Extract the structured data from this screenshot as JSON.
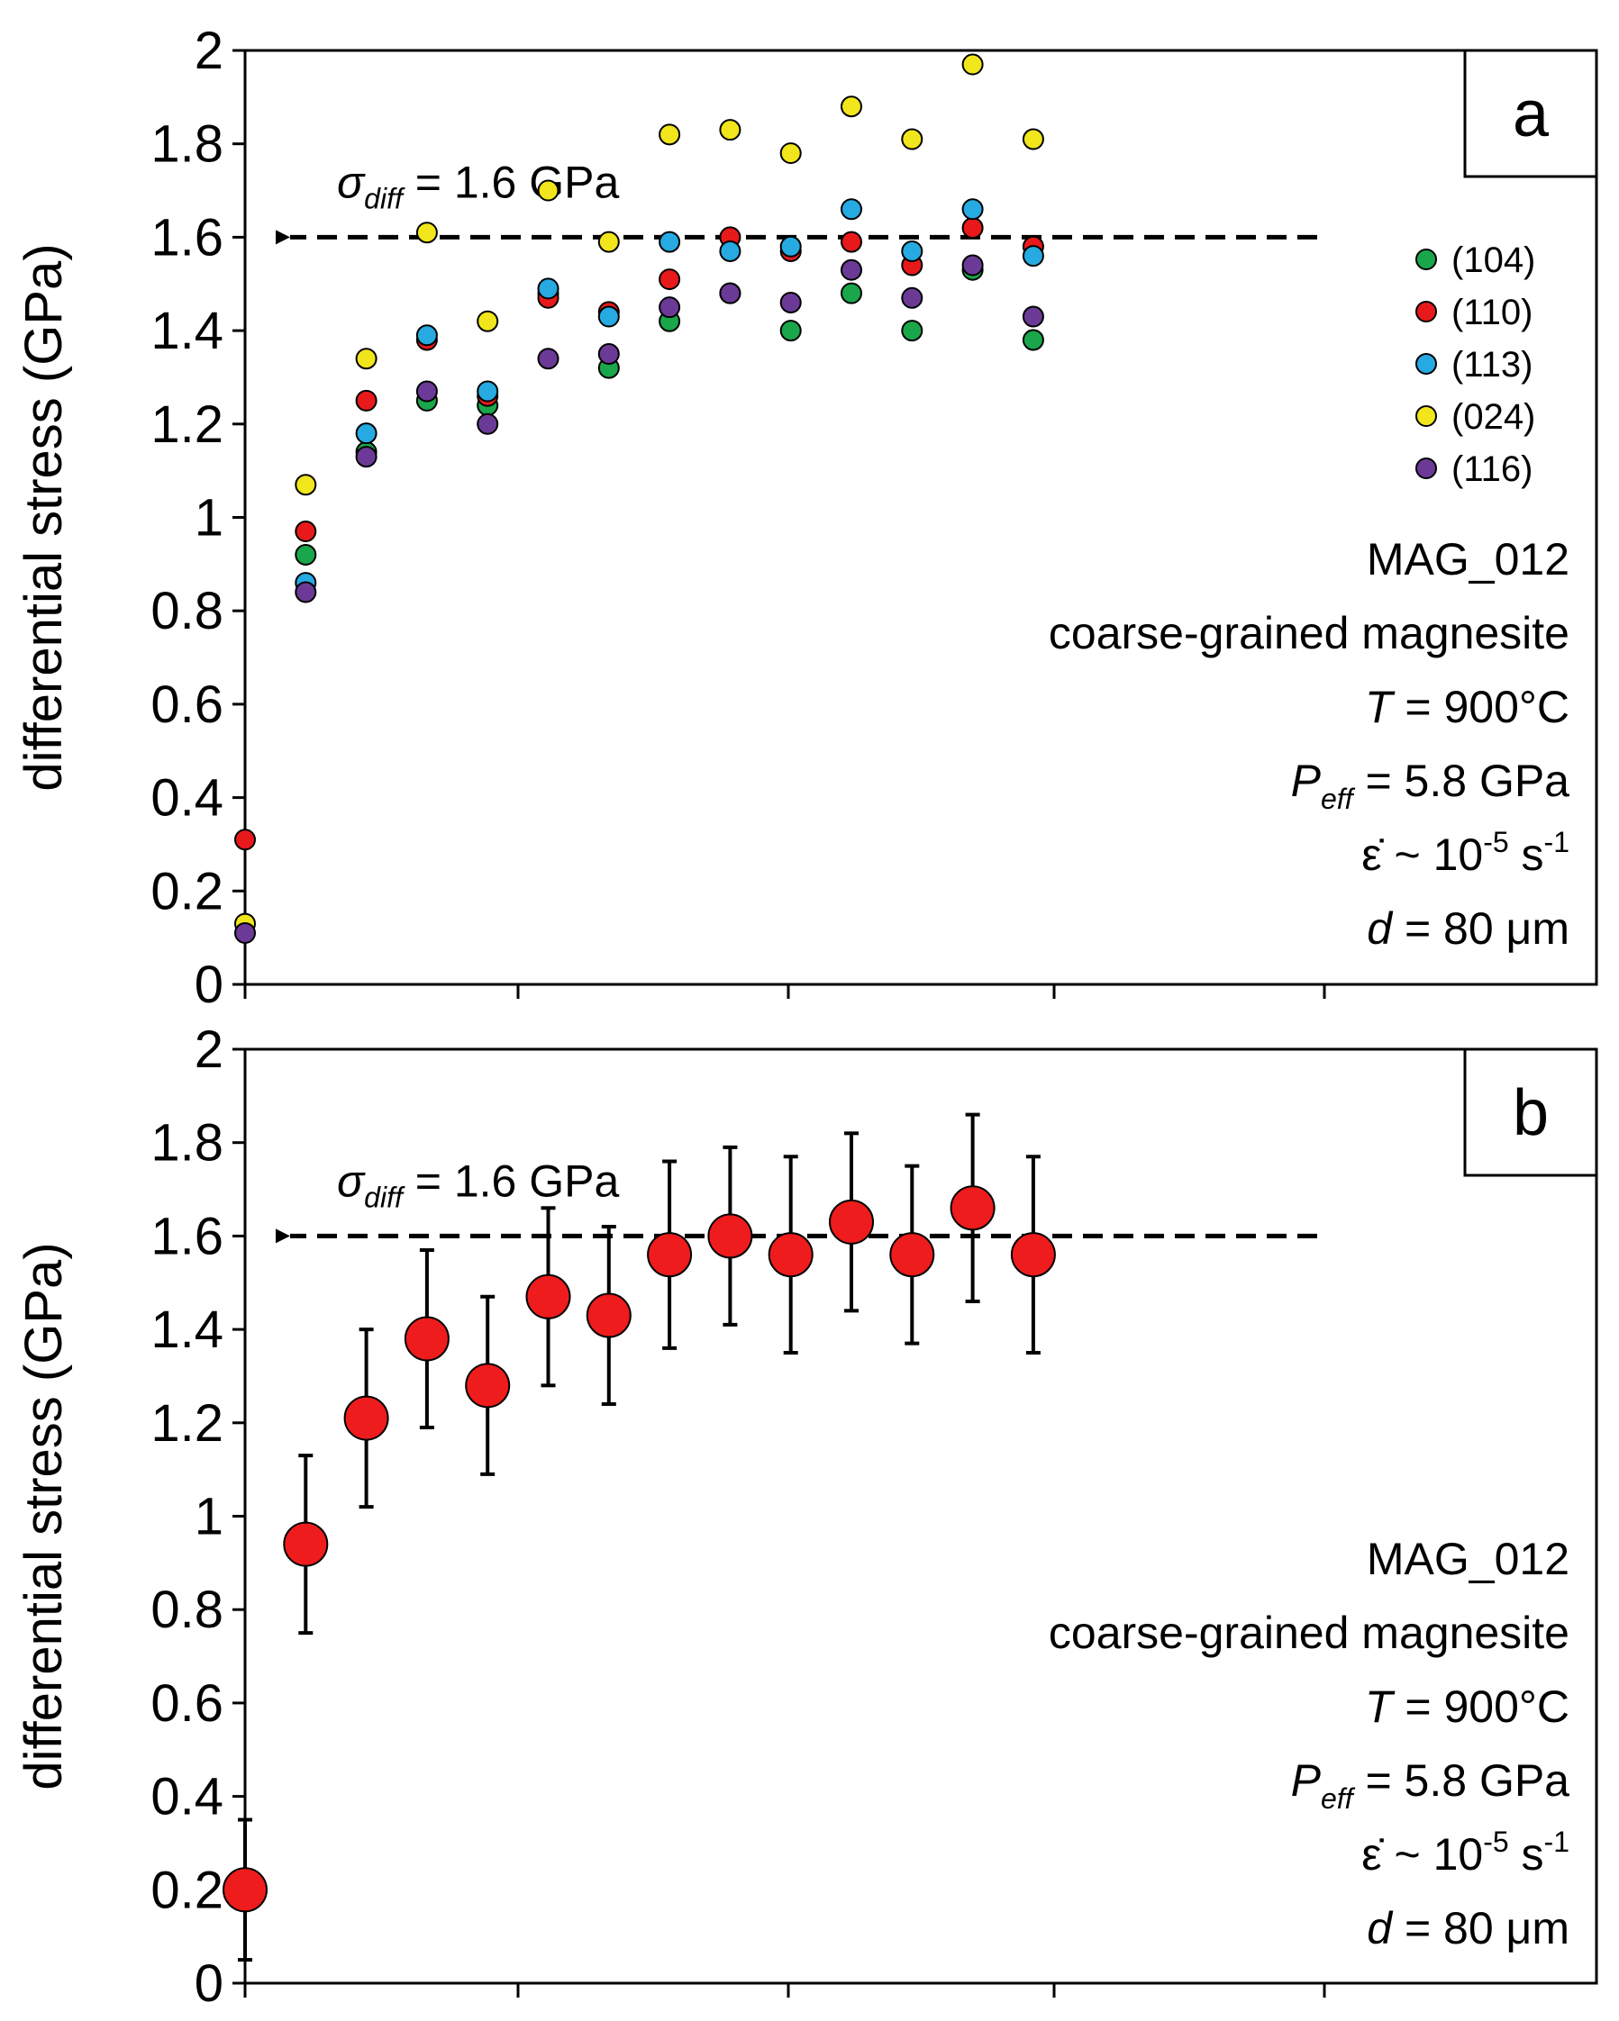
{
  "chart_data": [
    {
      "type": "scatter",
      "panel_label": "a",
      "ylabel": "differential stress (GPa)",
      "ylim": [
        0,
        2
      ],
      "yticks": [
        "0",
        "0.2",
        "0.4",
        "0.6",
        "0.8",
        "1",
        "1.2",
        "1.4",
        "1.6",
        "1.8",
        "2"
      ],
      "xticks_count": 5,
      "grid": false,
      "legend_position": "right",
      "reference_line": {
        "y": 1.6,
        "sigma": "σ",
        "sub": "diff",
        "value_text": " = 1.6 GPa"
      },
      "annotation_lines": [
        {
          "parts": [
            {
              "t": "MAG_012",
              "i": false
            }
          ]
        },
        {
          "parts": [
            {
              "t": "coarse-grained magnesite",
              "i": false
            }
          ]
        },
        {
          "parts": [
            {
              "t": "T",
              "i": true
            },
            {
              "t": " = 900°C",
              "i": false
            }
          ]
        },
        {
          "parts": [
            {
              "t": "P",
              "i": true
            },
            {
              "t": "eff",
              "i": true,
              "sub": true
            },
            {
              "t": " = 5.8 GPa",
              "i": false
            }
          ]
        },
        {
          "parts": [
            {
              "t": "ε̇ ~ 10",
              "i": false
            },
            {
              "t": "-5",
              "i": false,
              "sup": true
            },
            {
              "t": " s",
              "i": false
            },
            {
              "t": "-1",
              "i": false,
              "sup": true
            }
          ]
        },
        {
          "parts": [
            {
              "t": "d",
              "i": true
            },
            {
              "t": " = 80 μm",
              "i": false
            }
          ]
        }
      ],
      "x": [
        0,
        1,
        2,
        3,
        4,
        5,
        6,
        7,
        8,
        9,
        10,
        11,
        12,
        13,
        14,
        15
      ],
      "series": [
        {
          "name": "(104)",
          "color": "#1aa64a",
          "values": [
            null,
            0.92,
            1.14,
            1.25,
            1.24,
            1.48,
            1.32,
            1.42,
            1.48,
            1.4,
            1.48,
            1.4,
            1.53,
            1.38,
            null,
            null
          ]
        },
        {
          "name": "(110)",
          "color": "#e8191b",
          "values": [
            0.31,
            0.97,
            1.25,
            1.38,
            1.26,
            1.47,
            1.44,
            1.51,
            1.6,
            1.57,
            1.59,
            1.54,
            1.62,
            1.58,
            null,
            null
          ]
        },
        {
          "name": "(113)",
          "color": "#27a9e1",
          "values": [
            null,
            0.86,
            1.18,
            1.39,
            1.27,
            1.49,
            1.43,
            1.59,
            1.57,
            1.58,
            1.66,
            1.57,
            1.66,
            1.56,
            null,
            null
          ]
        },
        {
          "name": "(024)",
          "color": "#f1e51c",
          "values": [
            0.13,
            1.07,
            1.34,
            1.61,
            1.42,
            1.7,
            1.59,
            1.82,
            1.83,
            1.78,
            1.88,
            1.81,
            1.97,
            1.81,
            null,
            null
          ]
        },
        {
          "name": "(116)",
          "color": "#6b3a96",
          "values": [
            0.11,
            0.84,
            1.13,
            1.27,
            1.2,
            1.34,
            1.35,
            1.45,
            1.48,
            1.46,
            1.53,
            1.47,
            1.54,
            1.43,
            null,
            null
          ]
        }
      ]
    },
    {
      "type": "scatter",
      "panel_label": "b",
      "ylabel": "differential stress (GPa)",
      "ylim": [
        0,
        2
      ],
      "yticks": [
        "0",
        "0.2",
        "0.4",
        "0.6",
        "0.8",
        "1",
        "1.2",
        "1.4",
        "1.6",
        "1.8",
        "2"
      ],
      "xticks_count": 5,
      "grid": false,
      "reference_line": {
        "y": 1.6,
        "sigma": "σ",
        "sub": "diff",
        "value_text": " = 1.6 GPa"
      },
      "annotation_lines": [
        {
          "parts": [
            {
              "t": "MAG_012",
              "i": false
            }
          ]
        },
        {
          "parts": [
            {
              "t": "coarse-grained magnesite",
              "i": false
            }
          ]
        },
        {
          "parts": [
            {
              "t": "T",
              "i": true
            },
            {
              "t": " = 900°C",
              "i": false
            }
          ]
        },
        {
          "parts": [
            {
              "t": "P",
              "i": true
            },
            {
              "t": "eff",
              "i": true,
              "sub": true
            },
            {
              "t": " = 5.8 GPa",
              "i": false
            }
          ]
        },
        {
          "parts": [
            {
              "t": "ε̇ ~ 10",
              "i": false
            },
            {
              "t": "-5",
              "i": false,
              "sup": true
            },
            {
              "t": " s",
              "i": false
            },
            {
              "t": "-1",
              "i": false,
              "sup": true
            }
          ]
        },
        {
          "parts": [
            {
              "t": "d",
              "i": true
            },
            {
              "t": " = 80 μm",
              "i": false
            }
          ]
        }
      ],
      "series": [
        {
          "name": "",
          "color": "#ee1c1c",
          "points": [
            {
              "x": 0,
              "y": 0.2,
              "err": 0.15
            },
            {
              "x": 1,
              "y": 0.94,
              "err": 0.19
            },
            {
              "x": 2,
              "y": 1.21,
              "err": 0.19
            },
            {
              "x": 3,
              "y": 1.38,
              "err": 0.19
            },
            {
              "x": 4,
              "y": 1.28,
              "err": 0.19
            },
            {
              "x": 5,
              "y": 1.47,
              "err": 0.19
            },
            {
              "x": 6,
              "y": 1.43,
              "err": 0.19
            },
            {
              "x": 7,
              "y": 1.56,
              "err": 0.2
            },
            {
              "x": 8,
              "y": 1.6,
              "err": 0.19
            },
            {
              "x": 9,
              "y": 1.56,
              "err": 0.21
            },
            {
              "x": 10,
              "y": 1.63,
              "err": 0.19
            },
            {
              "x": 11,
              "y": 1.56,
              "err": 0.19
            },
            {
              "x": 12,
              "y": 1.66,
              "err": 0.2
            },
            {
              "x": 13,
              "y": 1.56,
              "err": 0.21
            }
          ]
        }
      ]
    }
  ]
}
